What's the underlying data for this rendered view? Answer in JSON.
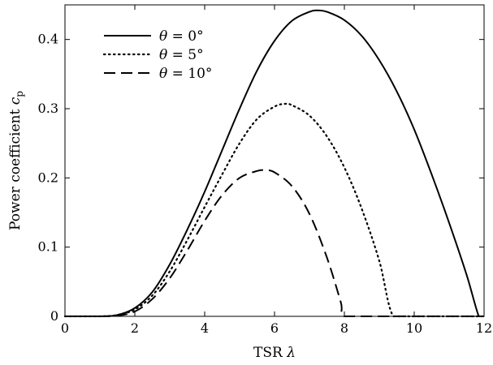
{
  "chart_data": {
    "type": "line",
    "title": "",
    "xlabel": "TSR λ",
    "ylabel": "Power coefficient c_p",
    "ylabel_main": "Power coefficient ",
    "ylabel_var": "c",
    "ylabel_sub": "p",
    "xlabel_main": "TSR ",
    "xlabel_var": "λ",
    "xlim": [
      0,
      12
    ],
    "ylim": [
      0,
      0.45
    ],
    "xticks": [
      0,
      2,
      4,
      6,
      8,
      10,
      12
    ],
    "xtick_labels": [
      "0",
      "2",
      "4",
      "6",
      "8",
      "10",
      "12"
    ],
    "yticks": [
      0,
      0.1,
      0.2,
      0.3,
      0.4
    ],
    "ytick_labels": [
      "0",
      "0.1",
      "0.2",
      "0.3",
      "0.4"
    ],
    "grid": false,
    "legend_position": "top-left",
    "series": [
      {
        "name": "θ = 0°",
        "name_var": "θ",
        "name_rest": " = 0°",
        "style": "solid",
        "x": [
          0,
          1,
          1.5,
          2,
          2.5,
          3,
          3.5,
          4,
          4.5,
          5,
          5.5,
          6,
          6.5,
          7,
          7.25,
          7.5,
          8,
          8.5,
          9,
          9.5,
          10,
          10.5,
          11,
          11.5,
          11.85,
          12
        ],
        "y": [
          0,
          0,
          0.002,
          0.012,
          0.035,
          0.075,
          0.125,
          0.18,
          0.24,
          0.3,
          0.355,
          0.398,
          0.427,
          0.44,
          0.442,
          0.44,
          0.428,
          0.405,
          0.37,
          0.325,
          0.27,
          0.205,
          0.135,
          0.06,
          0,
          0
        ]
      },
      {
        "name": "θ = 5°",
        "name_var": "θ",
        "name_rest": " = 5°",
        "style": "dotted",
        "x": [
          0,
          1,
          1.5,
          2,
          2.5,
          3,
          3.5,
          4,
          4.5,
          5,
          5.5,
          6,
          6.3,
          6.5,
          7,
          7.5,
          8,
          8.5,
          9,
          9.4,
          10,
          11,
          12
        ],
        "y": [
          0,
          0,
          0.002,
          0.01,
          0.03,
          0.065,
          0.11,
          0.158,
          0.205,
          0.25,
          0.285,
          0.303,
          0.307,
          0.305,
          0.29,
          0.26,
          0.215,
          0.155,
          0.08,
          0,
          0,
          0,
          0
        ]
      },
      {
        "name": "θ = 10°",
        "name_var": "θ",
        "name_rest": " = 10°",
        "style": "dashed",
        "x": [
          0,
          1,
          1.5,
          2,
          2.5,
          3,
          3.5,
          4,
          4.5,
          5,
          5.5,
          5.75,
          6,
          6.5,
          7,
          7.5,
          7.9,
          8,
          9,
          10,
          11,
          12
        ],
        "y": [
          0,
          0,
          0.001,
          0.007,
          0.025,
          0.055,
          0.095,
          0.138,
          0.175,
          0.2,
          0.21,
          0.211,
          0.208,
          0.188,
          0.148,
          0.085,
          0.02,
          0,
          0,
          0,
          0,
          0
        ]
      }
    ]
  }
}
